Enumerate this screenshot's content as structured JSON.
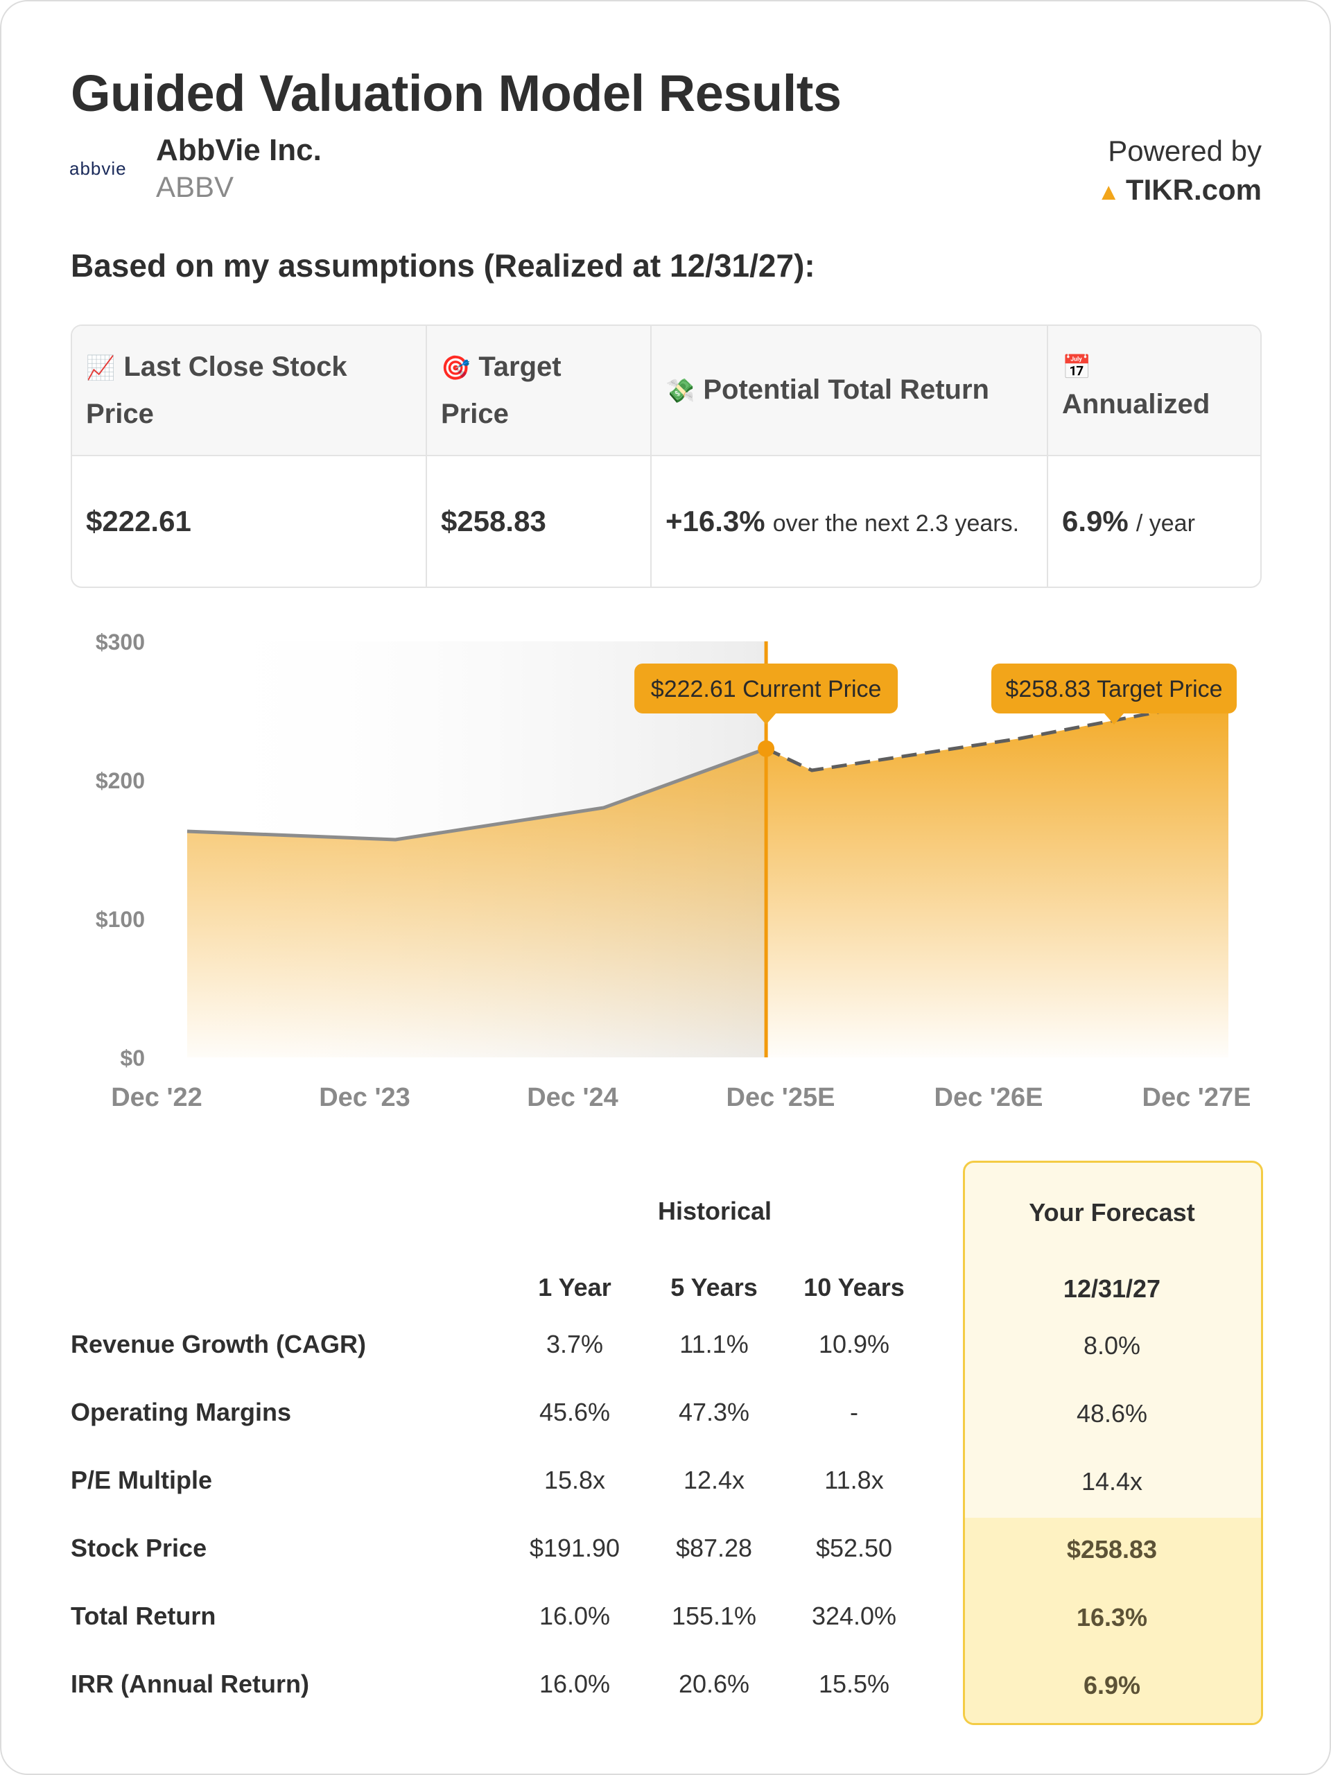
{
  "title": "Guided Valuation Model Results",
  "company": {
    "logo_text": "abbvie",
    "name": "AbbVie Inc.",
    "ticker": "ABBV"
  },
  "powered": {
    "label": "Powered by",
    "brand": "TIKR.com"
  },
  "assumptions_heading": "Based on my assumptions (Realized at 12/31/27):",
  "summary": {
    "headers": [
      {
        "icon": "📈",
        "label": "Last Close Stock Price"
      },
      {
        "icon": "🎯",
        "label": "Target Price"
      },
      {
        "icon": "💸",
        "label": "Potential Total Return"
      },
      {
        "icon": "📅",
        "label": "Annualized"
      }
    ],
    "last_close": "$222.61",
    "target": "$258.83",
    "return_value": "+16.3%",
    "return_text": "over the next 2.3 years.",
    "annualized_value": "6.9%",
    "annualized_unit": "/ year"
  },
  "chart_data": {
    "type": "area",
    "x": [
      "Dec '22",
      "Dec '23",
      "Dec '24",
      "Dec '25E",
      "Dec '26E",
      "Dec '27E"
    ],
    "historical": {
      "x": [
        0,
        1,
        2,
        2.78
      ],
      "y": [
        163,
        157,
        180,
        222.61
      ]
    },
    "forecast": {
      "x": [
        2.78,
        3,
        4,
        5
      ],
      "y": [
        222.61,
        207,
        230,
        258.83
      ]
    },
    "yticks": [
      "$0",
      "$100",
      "$200",
      "$300"
    ],
    "ylim": [
      0,
      300
    ],
    "current_label": "$222.61 Current Price",
    "target_label": "$258.83 Target Price",
    "colors": {
      "fill": "#f2a51a",
      "line": "#8c8c8c",
      "marker": "#f29a0c"
    }
  },
  "metrics": {
    "historical_label": "Historical",
    "forecast_label": "Your Forecast",
    "columns": [
      "1 Year",
      "5 Years",
      "10 Years"
    ],
    "forecast_date": "12/31/27",
    "rows": [
      {
        "label": "Revenue Growth (CAGR)",
        "values": [
          "3.7%",
          "11.1%",
          "10.9%"
        ],
        "forecast": "8.0%"
      },
      {
        "label": "Operating Margins",
        "values": [
          "45.6%",
          "47.3%",
          "-"
        ],
        "forecast": "48.6%"
      },
      {
        "label": "P/E Multiple",
        "values": [
          "15.8x",
          "12.4x",
          "11.8x"
        ],
        "forecast": "14.4x"
      },
      {
        "label": "Stock Price",
        "values": [
          "$191.90",
          "$87.28",
          "$52.50"
        ],
        "forecast": "$258.83"
      },
      {
        "label": "Total Return",
        "values": [
          "16.0%",
          "155.1%",
          "324.0%"
        ],
        "forecast": "16.3%"
      },
      {
        "label": "IRR (Annual Return)",
        "values": [
          "16.0%",
          "20.6%",
          "15.5%"
        ],
        "forecast": "6.9%"
      }
    ]
  }
}
